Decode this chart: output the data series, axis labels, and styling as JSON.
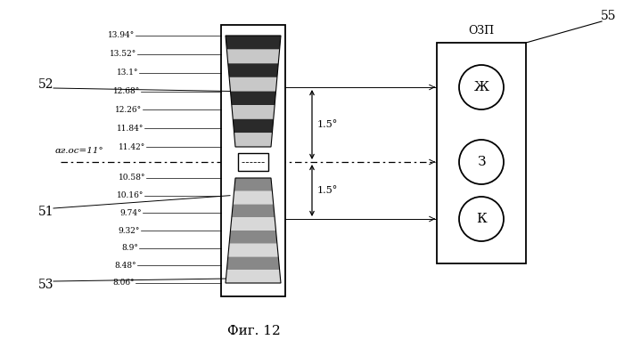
{
  "title": "Фиг. 12",
  "bg_color": "#ffffff",
  "upper_angles": [
    "13.94°",
    "13.52°",
    "13.1°",
    "12.68°",
    "12.26°",
    "11.84°",
    "11.42°"
  ],
  "lower_angles": [
    "10.58°",
    "10.16°",
    "9.74°",
    "9.32°",
    "8.9°",
    "8.48°",
    "8.06°"
  ],
  "alpha_label": "αг.ос=11°",
  "label_52": "52",
  "label_51": "51",
  "label_53": "53",
  "label_55": "55",
  "ozp_label": "ОЗП",
  "circle_labels": [
    "Ж",
    "З",
    "К"
  ],
  "dim_label_top": "1.5°",
  "dim_label_bot": "1.5°"
}
